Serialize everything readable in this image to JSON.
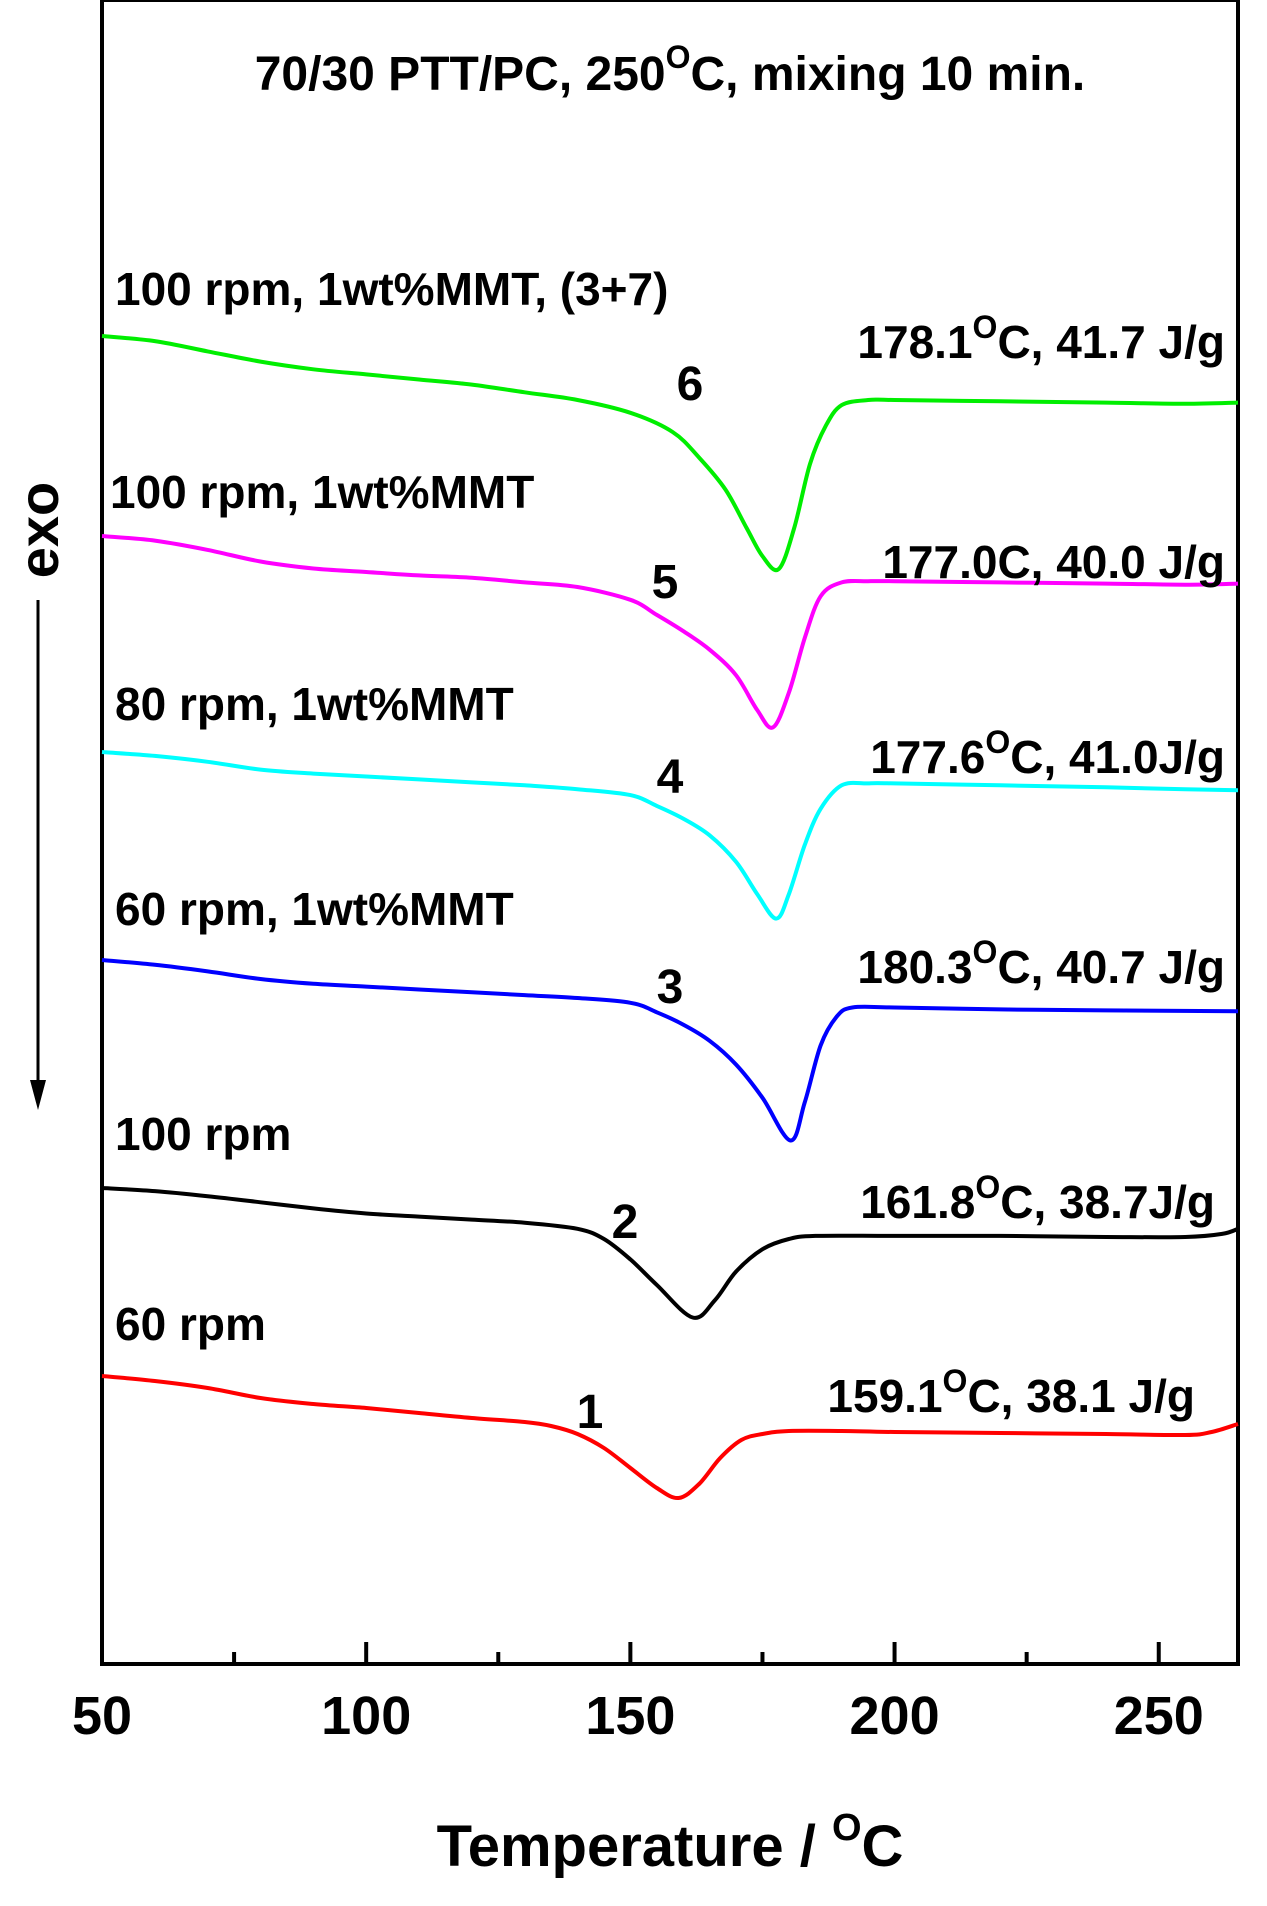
{
  "chart_data": {
    "type": "line",
    "title": {
      "main": "70/30 PTT/PC, 250",
      "sup": "O",
      "rest": "C, mixing 10 min."
    },
    "xlabel": {
      "main": "Temperature / ",
      "sup": "O",
      "rest": "C"
    },
    "ylabel": "exo",
    "xlim": [
      50,
      265
    ],
    "xticks": [
      50,
      100,
      150,
      200,
      250
    ],
    "xtick_labels": [
      "50",
      "100",
      "150",
      "200",
      "250"
    ],
    "series": [
      {
        "label": "60 rpm",
        "number": "1",
        "color": "#ff0000",
        "peak_annotation": {
          "main": "159.1",
          "sup": "O",
          "rest": "C, 38.1 J/g"
        },
        "points": [
          [
            50,
            0.0
          ],
          [
            60,
            0.05
          ],
          [
            70,
            0.12
          ],
          [
            80,
            0.22
          ],
          [
            90,
            0.28
          ],
          [
            100,
            0.32
          ],
          [
            110,
            0.37
          ],
          [
            120,
            0.42
          ],
          [
            130,
            0.46
          ],
          [
            135,
            0.5
          ],
          [
            140,
            0.58
          ],
          [
            145,
            0.72
          ],
          [
            150,
            0.92
          ],
          [
            155,
            1.12
          ],
          [
            159.1,
            1.22
          ],
          [
            163,
            1.08
          ],
          [
            167,
            0.82
          ],
          [
            171,
            0.64
          ],
          [
            175,
            0.58
          ],
          [
            180,
            0.55
          ],
          [
            190,
            0.55
          ],
          [
            200,
            0.56
          ],
          [
            220,
            0.57
          ],
          [
            240,
            0.58
          ],
          [
            255,
            0.59
          ],
          [
            260,
            0.56
          ],
          [
            265,
            0.48
          ]
        ]
      },
      {
        "label": "100 rpm",
        "number": "2",
        "color": "#000000",
        "peak_annotation": {
          "main": "161.8",
          "sup": "O",
          "rest": "C, 38.7J/g"
        },
        "points": [
          [
            50,
            0.0
          ],
          [
            60,
            0.03
          ],
          [
            70,
            0.08
          ],
          [
            80,
            0.14
          ],
          [
            90,
            0.2
          ],
          [
            100,
            0.25
          ],
          [
            110,
            0.28
          ],
          [
            120,
            0.31
          ],
          [
            130,
            0.34
          ],
          [
            140,
            0.4
          ],
          [
            145,
            0.5
          ],
          [
            150,
            0.7
          ],
          [
            155,
            0.95
          ],
          [
            161.8,
            1.27
          ],
          [
            166,
            1.1
          ],
          [
            170,
            0.82
          ],
          [
            175,
            0.6
          ],
          [
            180,
            0.5
          ],
          [
            185,
            0.47
          ],
          [
            200,
            0.47
          ],
          [
            220,
            0.47
          ],
          [
            240,
            0.48
          ],
          [
            255,
            0.48
          ],
          [
            262,
            0.45
          ],
          [
            265,
            0.4
          ]
        ]
      },
      {
        "label": "60 rpm, 1wt%MMT",
        "number": "3",
        "color": "#0000ff",
        "peak_annotation": {
          "main": "180.3",
          "sup": "O",
          "rest": "C, 40.7 J/g"
        },
        "points": [
          [
            50,
            0.0
          ],
          [
            60,
            0.05
          ],
          [
            70,
            0.12
          ],
          [
            80,
            0.2
          ],
          [
            90,
            0.25
          ],
          [
            100,
            0.28
          ],
          [
            110,
            0.31
          ],
          [
            120,
            0.34
          ],
          [
            130,
            0.37
          ],
          [
            140,
            0.4
          ],
          [
            150,
            0.45
          ],
          [
            155,
            0.55
          ],
          [
            160,
            0.68
          ],
          [
            165,
            0.85
          ],
          [
            170,
            1.1
          ],
          [
            175,
            1.45
          ],
          [
            180.3,
            1.9
          ],
          [
            183,
            1.5
          ],
          [
            186,
            0.9
          ],
          [
            189,
            0.6
          ],
          [
            192,
            0.5
          ],
          [
            200,
            0.5
          ],
          [
            220,
            0.52
          ],
          [
            240,
            0.53
          ],
          [
            265,
            0.54
          ]
        ]
      },
      {
        "label": "80 rpm, 1wt%MMT",
        "number": "4",
        "color": "#00ffff",
        "peak_annotation": {
          "main": "177.6",
          "sup": "O",
          "rest": "C, 41.0J/g"
        },
        "points": [
          [
            50,
            0.0
          ],
          [
            60,
            0.04
          ],
          [
            70,
            0.1
          ],
          [
            80,
            0.18
          ],
          [
            90,
            0.22
          ],
          [
            100,
            0.25
          ],
          [
            110,
            0.28
          ],
          [
            120,
            0.31
          ],
          [
            130,
            0.34
          ],
          [
            140,
            0.38
          ],
          [
            150,
            0.44
          ],
          [
            155,
            0.55
          ],
          [
            160,
            0.68
          ],
          [
            165,
            0.85
          ],
          [
            170,
            1.12
          ],
          [
            174,
            1.45
          ],
          [
            177.6,
            1.7
          ],
          [
            180,
            1.45
          ],
          [
            183,
            0.95
          ],
          [
            186,
            0.58
          ],
          [
            190,
            0.34
          ],
          [
            195,
            0.32
          ],
          [
            200,
            0.32
          ],
          [
            220,
            0.34
          ],
          [
            240,
            0.36
          ],
          [
            255,
            0.38
          ],
          [
            265,
            0.39
          ]
        ]
      },
      {
        "label": "100 rpm, 1wt%MMT",
        "number": "5",
        "color": "#ff00ff",
        "peak_annotation": {
          "main": "177.0C, 40.0 J/g",
          "sup": "",
          "rest": ""
        },
        "points": [
          [
            50,
            0.0
          ],
          [
            60,
            0.04
          ],
          [
            70,
            0.12
          ],
          [
            80,
            0.22
          ],
          [
            90,
            0.28
          ],
          [
            100,
            0.31
          ],
          [
            110,
            0.34
          ],
          [
            120,
            0.36
          ],
          [
            130,
            0.4
          ],
          [
            140,
            0.44
          ],
          [
            150,
            0.55
          ],
          [
            155,
            0.68
          ],
          [
            160,
            0.82
          ],
          [
            165,
            0.98
          ],
          [
            170,
            1.2
          ],
          [
            174,
            1.5
          ],
          [
            177,
            1.65
          ],
          [
            180,
            1.35
          ],
          [
            183,
            0.88
          ],
          [
            186,
            0.52
          ],
          [
            190,
            0.4
          ],
          [
            195,
            0.39
          ],
          [
            200,
            0.39
          ],
          [
            220,
            0.4
          ],
          [
            240,
            0.41
          ],
          [
            255,
            0.42
          ],
          [
            265,
            0.41
          ]
        ]
      },
      {
        "label": "100 rpm, 1wt%MMT, (3+7)",
        "number": "6",
        "color": "#00ee00",
        "peak_annotation": {
          "main": "178.1",
          "sup": "O",
          "rest": "C, 41.7 J/g"
        },
        "points": [
          [
            50,
            0.0
          ],
          [
            60,
            0.04
          ],
          [
            70,
            0.12
          ],
          [
            80,
            0.2
          ],
          [
            90,
            0.26
          ],
          [
            100,
            0.3
          ],
          [
            110,
            0.34
          ],
          [
            120,
            0.38
          ],
          [
            130,
            0.44
          ],
          [
            140,
            0.5
          ],
          [
            150,
            0.6
          ],
          [
            158,
            0.75
          ],
          [
            163,
            0.95
          ],
          [
            168,
            1.2
          ],
          [
            172,
            1.5
          ],
          [
            175,
            1.72
          ],
          [
            178.1,
            1.82
          ],
          [
            181,
            1.5
          ],
          [
            184,
            1.0
          ],
          [
            187,
            0.7
          ],
          [
            190,
            0.54
          ],
          [
            195,
            0.5
          ],
          [
            200,
            0.5
          ],
          [
            220,
            0.51
          ],
          [
            240,
            0.52
          ],
          [
            255,
            0.53
          ],
          [
            265,
            0.52
          ]
        ]
      }
    ]
  }
}
